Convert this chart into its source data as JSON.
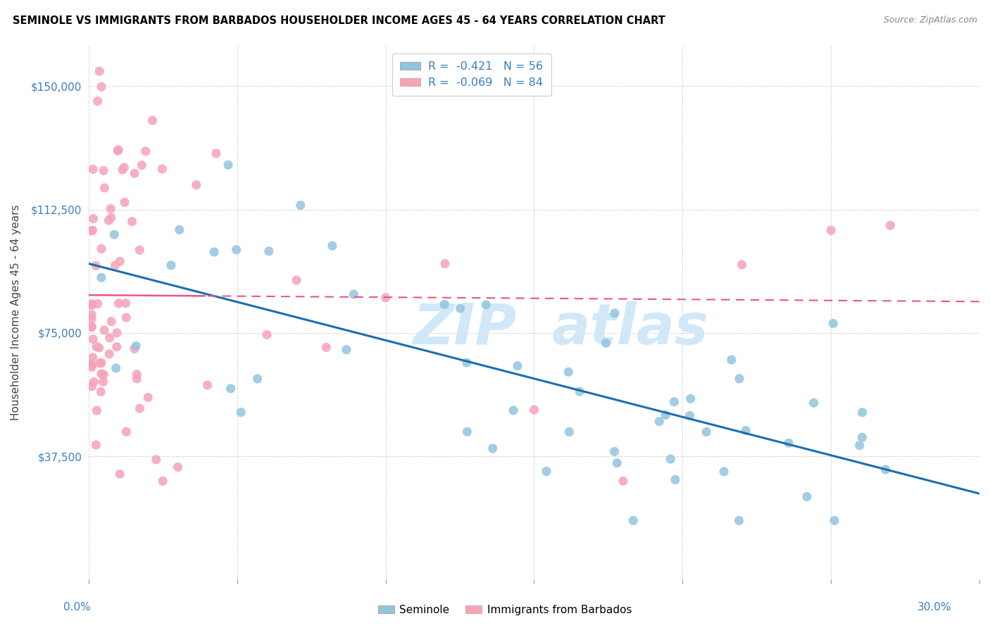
{
  "title": "SEMINOLE VS IMMIGRANTS FROM BARBADOS HOUSEHOLDER INCOME AGES 45 - 64 YEARS CORRELATION CHART",
  "source": "Source: ZipAtlas.com",
  "ylabel": "Householder Income Ages 45 - 64 years",
  "ylim": [
    0,
    162500
  ],
  "xlim": [
    0.0,
    0.3
  ],
  "yticks": [
    0,
    37500,
    75000,
    112500,
    150000
  ],
  "ytick_labels": [
    "",
    "$37,500",
    "$75,000",
    "$112,500",
    "$150,000"
  ],
  "blue_color": "#92c5de",
  "pink_color": "#f4a4b8",
  "blue_line_color": "#1a6faf",
  "pink_line_color": "#e8558a",
  "label_color": "#3a7ebf",
  "watermark_color": "#d0e8f8"
}
